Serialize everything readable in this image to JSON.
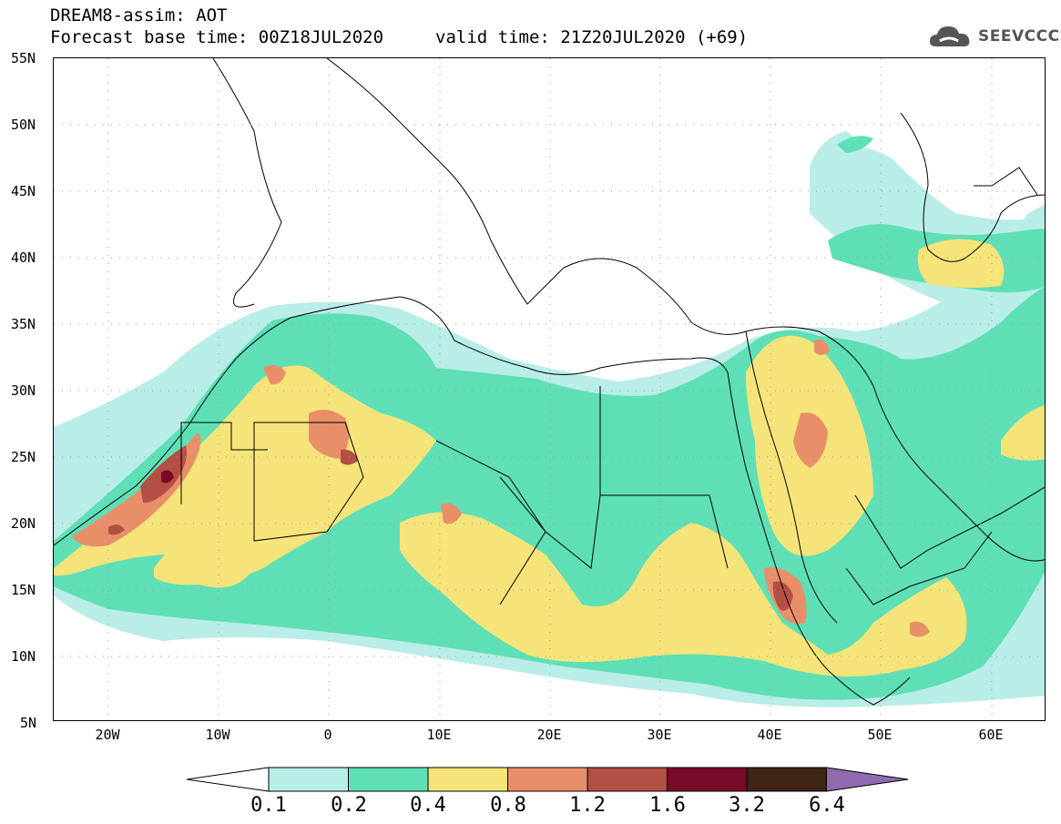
{
  "header": {
    "title": "DREAM8-assim: AOT",
    "base_time": "Forecast base time: 00Z18JUL2020",
    "valid_time": "valid time: 21Z20JUL2020 (+69)",
    "logo_text": "SEEVCCC"
  },
  "map": {
    "lat_labels": [
      "55N",
      "50N",
      "45N",
      "40N",
      "35N",
      "30N",
      "25N",
      "20N",
      "15N",
      "10N",
      "5N"
    ],
    "lon_labels": [
      "20W",
      "10W",
      "0",
      "10E",
      "20E",
      "30E",
      "40E",
      "50E",
      "60E"
    ],
    "lat_range": [
      5,
      55
    ],
    "lon_range": [
      -25,
      65
    ],
    "variable": "AOT"
  },
  "colorbar": {
    "ticks": [
      "0.1",
      "0.2",
      "0.4",
      "0.8",
      "1.2",
      "1.6",
      "3.2",
      "6.4"
    ],
    "colors": [
      "#ffffff",
      "#b9ede7",
      "#5fdfb6",
      "#f5e47a",
      "#e88f6a",
      "#b44f43",
      "#7a0a2a",
      "#3d2413",
      "#8f6bb0"
    ]
  }
}
